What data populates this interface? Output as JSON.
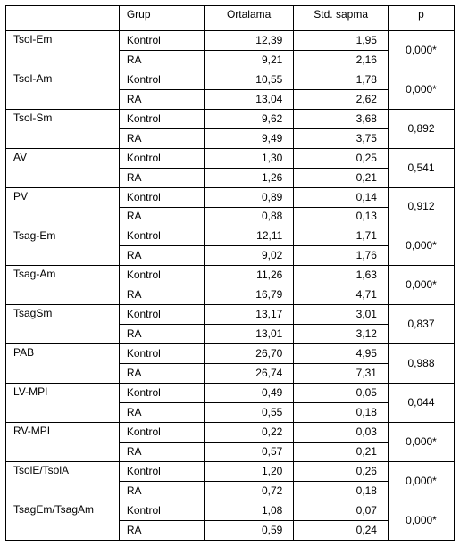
{
  "headers": {
    "blank": "",
    "grup": "Grup",
    "ortalama": "Ortalama",
    "std": "Std. sapma",
    "p": "p"
  },
  "grup_labels": {
    "kontrol": "Kontrol",
    "ra": "RA"
  },
  "rows": [
    {
      "label": "Tsol-Em",
      "kontrol_mean": "12,39",
      "kontrol_std": "1,95",
      "ra_mean": "9,21",
      "ra_std": "2,16",
      "p": "0,000*"
    },
    {
      "label": "Tsol-Am",
      "kontrol_mean": "10,55",
      "kontrol_std": "1,78",
      "ra_mean": "13,04",
      "ra_std": "2,62",
      "p": "0,000*"
    },
    {
      "label": "Tsol-Sm",
      "kontrol_mean": "9,62",
      "kontrol_std": "3,68",
      "ra_mean": "9,49",
      "ra_std": "3,75",
      "p": "0,892"
    },
    {
      "label": "AV",
      "kontrol_mean": "1,30",
      "kontrol_std": "0,25",
      "ra_mean": "1,26",
      "ra_std": "0,21",
      "p": "0,541"
    },
    {
      "label": "PV",
      "kontrol_mean": "0,89",
      "kontrol_std": "0,14",
      "ra_mean": "0,88",
      "ra_std": "0,13",
      "p": "0,912"
    },
    {
      "label": "Tsag-Em",
      "kontrol_mean": "12,11",
      "kontrol_std": "1,71",
      "ra_mean": "9,02",
      "ra_std": "1,76",
      "p": "0,000*"
    },
    {
      "label": "Tsag-Am",
      "kontrol_mean": "11,26",
      "kontrol_std": "1,63",
      "ra_mean": "16,79",
      "ra_std": "4,71",
      "p": "0,000*"
    },
    {
      "label": "TsagSm",
      "kontrol_mean": "13,17",
      "kontrol_std": "3,01",
      "ra_mean": "13,01",
      "ra_std": "3,12",
      "p": "0,837"
    },
    {
      "label": "PAB",
      "kontrol_mean": "26,70",
      "kontrol_std": "4,95",
      "ra_mean": "26,74",
      "ra_std": "7,31",
      "p": "0,988"
    },
    {
      "label": "LV-MPI",
      "kontrol_mean": "0,49",
      "kontrol_std": "0,05",
      "ra_mean": "0,55",
      "ra_std": "0,18",
      "p": "0,044"
    },
    {
      "label": "RV-MPI",
      "kontrol_mean": "0,22",
      "kontrol_std": "0,03",
      "ra_mean": "0,57",
      "ra_std": "0,21",
      "p": "0,000*"
    },
    {
      "label": "TsolE/TsolA",
      "kontrol_mean": "1,20",
      "kontrol_std": "0,26",
      "ra_mean": "0,72",
      "ra_std": "0,18",
      "p": "0,000*"
    },
    {
      "label": "TsagEm/TsagAm",
      "kontrol_mean": "1,08",
      "kontrol_std": "0,07",
      "ra_mean": "0,59",
      "ra_std": "0,24",
      "p": "0,000*"
    }
  ],
  "style": {
    "type": "table",
    "font_family": "Arial",
    "font_size_pt": 9,
    "border_color": "#000000",
    "background_color": "#ffffff",
    "text_color": "#000000",
    "column_align": [
      "left",
      "left",
      "right",
      "right",
      "center"
    ]
  }
}
